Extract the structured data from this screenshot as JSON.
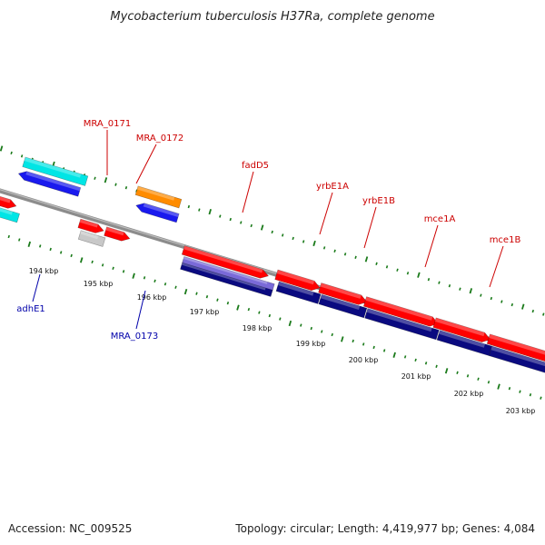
{
  "title": "Mycobacterium tuberculosis H37Ra, complete genome",
  "footer": {
    "accession": "Accession: NC_009525",
    "topology": "Topology: circular; Length: 4,419,977 bp; Genes: 4,084"
  },
  "ticks": [
    "194 kbp",
    "195 kbp",
    "196 kbp",
    "197 kbp",
    "198 kbp",
    "199 kbp",
    "200 kbp",
    "201 kbp",
    "202 kbp",
    "203 kbp"
  ],
  "gene_labels": {
    "top": [
      "MRA_0171",
      "MRA_0172",
      "fadD5",
      "yrbE1A",
      "yrbE1B",
      "mce1A",
      "mce1B"
    ],
    "bottom": [
      "adhE1",
      "MRA_0173"
    ]
  },
  "colors": {
    "backbone": "#8c8c8c",
    "tick": "#1a7a1a",
    "forward_gene": "#ff0000",
    "mce_gene": "#0a0a80",
    "blue_gene": "#1a1aee",
    "cyan_gene": "#00e5e5",
    "gray_gene": "#c8c8c8",
    "orange_gene": "#ff8c00",
    "lavender_gene": "#7a6ad8",
    "red_label": "#cc0000",
    "blue_label": "#0000aa"
  }
}
